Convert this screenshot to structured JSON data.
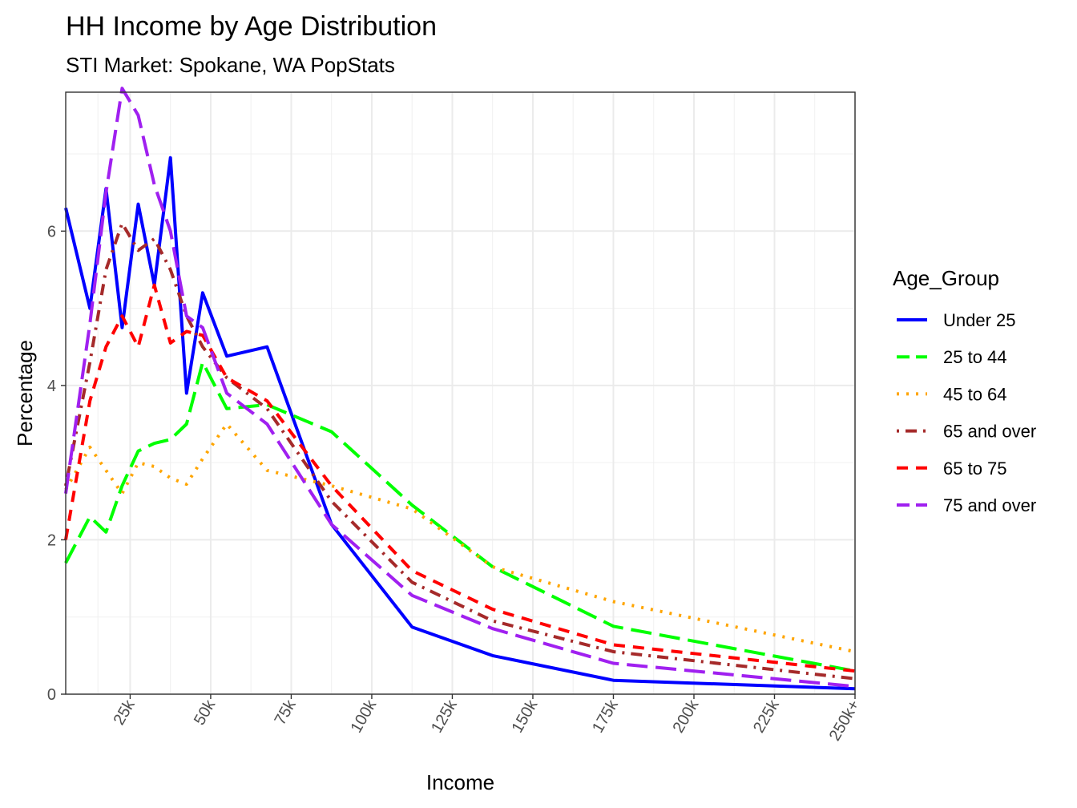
{
  "chart_data": {
    "type": "line",
    "title": "HH Income by Age Distribution",
    "subtitle": "STI Market: Spokane, WA PopStats",
    "xlabel": "Income",
    "ylabel": "Percentage",
    "xlim": [
      5,
      250
    ],
    "ylim": [
      0,
      7.8
    ],
    "x_ticks": [
      25,
      50,
      75,
      100,
      125,
      150,
      175,
      200,
      225,
      250
    ],
    "x_tick_labels": [
      "25k",
      "50k",
      "75k",
      "100k",
      "125k",
      "150k",
      "175k",
      "200k",
      "225k",
      "250k+"
    ],
    "y_ticks": [
      0,
      2,
      4,
      6
    ],
    "y_tick_labels": [
      "0",
      "2",
      "4",
      "6"
    ],
    "grid": true,
    "legend": {
      "title": "Age_Group",
      "placement": "right"
    },
    "x": [
      5,
      12.5,
      17.5,
      22.5,
      27.5,
      32.5,
      37.5,
      42.5,
      47.5,
      55,
      67.5,
      87.5,
      112.5,
      137.5,
      175,
      250
    ],
    "series": [
      {
        "name": "Under 25",
        "color": "#0000FF",
        "dash": "solid",
        "values": [
          6.3,
          5.0,
          6.55,
          4.75,
          6.35,
          5.3,
          6.95,
          3.9,
          5.2,
          4.38,
          4.5,
          2.2,
          0.87,
          0.5,
          0.18,
          0.07
        ]
      },
      {
        "name": "25 to 44",
        "color": "#00FF00",
        "dash": "longdash",
        "values": [
          1.7,
          2.3,
          2.1,
          2.7,
          3.15,
          3.25,
          3.3,
          3.5,
          4.3,
          3.7,
          3.75,
          3.4,
          2.45,
          1.65,
          0.88,
          0.3
        ]
      },
      {
        "name": "45 to 64",
        "color": "#FFA500",
        "dash": "dotted",
        "values": [
          2.65,
          3.2,
          2.9,
          2.6,
          3.0,
          2.95,
          2.8,
          2.72,
          3.05,
          3.5,
          2.9,
          2.7,
          2.4,
          1.65,
          1.2,
          0.55
        ]
      },
      {
        "name": "65 and over",
        "color": "#A52A2A",
        "dash": "dotdash",
        "values": [
          2.7,
          4.3,
          5.5,
          6.1,
          5.75,
          5.9,
          5.5,
          4.9,
          4.5,
          4.1,
          3.7,
          2.5,
          1.45,
          0.95,
          0.55,
          0.2
        ]
      },
      {
        "name": "65 to 75",
        "color": "#FF0000",
        "dash": "dashed",
        "values": [
          2.0,
          3.8,
          4.5,
          4.9,
          4.5,
          5.3,
          4.55,
          4.7,
          4.65,
          4.1,
          3.8,
          2.7,
          1.6,
          1.1,
          0.64,
          0.3
        ]
      },
      {
        "name": "75 and over",
        "color": "#A020F0",
        "dash": "longdash",
        "values": [
          2.6,
          4.8,
          6.5,
          7.85,
          7.5,
          6.6,
          6.0,
          4.9,
          4.75,
          3.9,
          3.5,
          2.2,
          1.28,
          0.85,
          0.4,
          0.1
        ]
      }
    ]
  }
}
